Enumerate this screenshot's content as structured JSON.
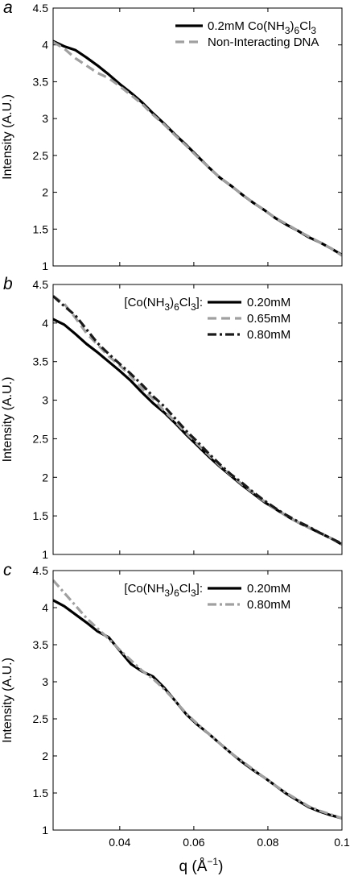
{
  "x_axis": {
    "label_main": "q (",
    "label_unit": "Å",
    "label_exp": "−1",
    "label_close": ")"
  },
  "chart_data": [
    {
      "type": "line",
      "panel_letter": "a",
      "ylabel": "Intensity (A.U.)",
      "xlim": [
        0.022,
        0.1
      ],
      "ylim": [
        1,
        4.5
      ],
      "yticks": [
        "1",
        "1.5",
        "2",
        "2.5",
        "3",
        "3.5",
        "4",
        "4.5"
      ],
      "xticks": [],
      "grid": false,
      "legend_position": "top-right",
      "legend_header": {},
      "series": [
        {
          "name_parts": [
            "0.2mM Co(NH",
            "3",
            ")",
            "6",
            "Cl",
            "3"
          ],
          "color": "#000000",
          "dash": "solid",
          "width": 3.2,
          "points": [
            [
              0.022,
              4.05
            ],
            [
              0.025,
              3.98
            ],
            [
              0.028,
              3.93
            ],
            [
              0.031,
              3.83
            ],
            [
              0.034,
              3.72
            ],
            [
              0.037,
              3.6
            ],
            [
              0.04,
              3.47
            ],
            [
              0.043,
              3.35
            ],
            [
              0.046,
              3.22
            ],
            [
              0.049,
              3.07
            ],
            [
              0.052,
              2.93
            ],
            [
              0.055,
              2.78
            ],
            [
              0.058,
              2.64
            ],
            [
              0.061,
              2.49
            ],
            [
              0.064,
              2.34
            ],
            [
              0.067,
              2.2
            ],
            [
              0.07,
              2.09
            ],
            [
              0.073,
              1.97
            ],
            [
              0.076,
              1.86
            ],
            [
              0.079,
              1.76
            ],
            [
              0.082,
              1.65
            ],
            [
              0.085,
              1.56
            ],
            [
              0.088,
              1.48
            ],
            [
              0.091,
              1.39
            ],
            [
              0.094,
              1.32
            ],
            [
              0.097,
              1.24
            ],
            [
              0.1,
              1.15
            ]
          ]
        },
        {
          "name_parts": [
            "Non-Interacting DNA"
          ],
          "color": "#a0a0a0",
          "dash": "dashed",
          "width": 3.2,
          "points": [
            [
              0.022,
              4.04
            ],
            [
              0.025,
              3.95
            ],
            [
              0.028,
              3.82
            ],
            [
              0.031,
              3.72
            ],
            [
              0.034,
              3.62
            ],
            [
              0.037,
              3.55
            ],
            [
              0.04,
              3.44
            ],
            [
              0.043,
              3.32
            ],
            [
              0.046,
              3.2
            ],
            [
              0.049,
              3.05
            ],
            [
              0.052,
              2.92
            ],
            [
              0.055,
              2.77
            ],
            [
              0.058,
              2.63
            ],
            [
              0.061,
              2.48
            ],
            [
              0.064,
              2.34
            ],
            [
              0.067,
              2.2
            ],
            [
              0.07,
              2.09
            ],
            [
              0.073,
              1.97
            ],
            [
              0.076,
              1.86
            ],
            [
              0.079,
              1.76
            ],
            [
              0.082,
              1.65
            ],
            [
              0.085,
              1.57
            ],
            [
              0.088,
              1.48
            ],
            [
              0.091,
              1.4
            ],
            [
              0.094,
              1.32
            ],
            [
              0.097,
              1.24
            ],
            [
              0.1,
              1.14
            ]
          ]
        }
      ]
    },
    {
      "type": "line",
      "panel_letter": "b",
      "ylabel": "Intensity (A.U.)",
      "xlim": [
        0.022,
        0.1
      ],
      "ylim": [
        1,
        4.5
      ],
      "yticks": [
        "1",
        "1.5",
        "2",
        "2.5",
        "3",
        "3.5",
        "4",
        "4.5"
      ],
      "xticks": [],
      "grid": false,
      "legend_position": "top-right",
      "legend_header": {
        "parts": [
          "[Co(NH",
          "3",
          ")",
          "6",
          "Cl",
          "3",
          "]:"
        ]
      },
      "series": [
        {
          "name_parts": [
            "0.20mM"
          ],
          "color": "#000000",
          "dash": "solid",
          "width": 3.2,
          "points": [
            [
              0.022,
              4.05
            ],
            [
              0.025,
              3.98
            ],
            [
              0.028,
              3.86
            ],
            [
              0.031,
              3.73
            ],
            [
              0.034,
              3.62
            ],
            [
              0.037,
              3.5
            ],
            [
              0.04,
              3.38
            ],
            [
              0.043,
              3.25
            ],
            [
              0.046,
              3.1
            ],
            [
              0.049,
              2.96
            ],
            [
              0.052,
              2.84
            ],
            [
              0.055,
              2.7
            ],
            [
              0.058,
              2.55
            ],
            [
              0.061,
              2.41
            ],
            [
              0.064,
              2.27
            ],
            [
              0.067,
              2.14
            ],
            [
              0.07,
              2.02
            ],
            [
              0.073,
              1.9
            ],
            [
              0.076,
              1.79
            ],
            [
              0.079,
              1.68
            ],
            [
              0.082,
              1.59
            ],
            [
              0.085,
              1.5
            ],
            [
              0.088,
              1.42
            ],
            [
              0.091,
              1.35
            ],
            [
              0.094,
              1.28
            ],
            [
              0.097,
              1.21
            ],
            [
              0.1,
              1.13
            ]
          ]
        },
        {
          "name_parts": [
            "0.65mM"
          ],
          "color": "#a0a0a0",
          "dash": "dashed",
          "width": 3.2,
          "points": [
            [
              0.022,
              4.35
            ],
            [
              0.025,
              4.25
            ],
            [
              0.028,
              4.07
            ],
            [
              0.031,
              3.87
            ],
            [
              0.034,
              3.72
            ],
            [
              0.037,
              3.57
            ],
            [
              0.04,
              3.45
            ],
            [
              0.043,
              3.31
            ],
            [
              0.046,
              3.15
            ],
            [
              0.049,
              3.02
            ],
            [
              0.052,
              2.86
            ],
            [
              0.055,
              2.72
            ],
            [
              0.058,
              2.57
            ],
            [
              0.061,
              2.43
            ],
            [
              0.064,
              2.29
            ],
            [
              0.067,
              2.15
            ],
            [
              0.07,
              2.03
            ],
            [
              0.073,
              1.91
            ],
            [
              0.076,
              1.8
            ],
            [
              0.079,
              1.69
            ],
            [
              0.082,
              1.59
            ],
            [
              0.085,
              1.5
            ],
            [
              0.088,
              1.42
            ],
            [
              0.091,
              1.35
            ],
            [
              0.094,
              1.28
            ],
            [
              0.097,
              1.21
            ],
            [
              0.1,
              1.13
            ]
          ]
        },
        {
          "name_parts": [
            "0.80mM"
          ],
          "color": "#1a1a1a",
          "dash": "dashdot",
          "width": 3.2,
          "points": [
            [
              0.022,
              4.35
            ],
            [
              0.025,
              4.22
            ],
            [
              0.028,
              4.1
            ],
            [
              0.031,
              3.92
            ],
            [
              0.034,
              3.74
            ],
            [
              0.037,
              3.6
            ],
            [
              0.04,
              3.47
            ],
            [
              0.043,
              3.34
            ],
            [
              0.046,
              3.2
            ],
            [
              0.049,
              3.05
            ],
            [
              0.052,
              2.92
            ],
            [
              0.055,
              2.76
            ],
            [
              0.058,
              2.6
            ],
            [
              0.061,
              2.46
            ],
            [
              0.064,
              2.31
            ],
            [
              0.067,
              2.17
            ],
            [
              0.07,
              2.04
            ],
            [
              0.073,
              1.93
            ],
            [
              0.076,
              1.81
            ],
            [
              0.079,
              1.7
            ],
            [
              0.082,
              1.6
            ],
            [
              0.085,
              1.51
            ],
            [
              0.088,
              1.43
            ],
            [
              0.091,
              1.36
            ],
            [
              0.094,
              1.28
            ],
            [
              0.097,
              1.21
            ],
            [
              0.1,
              1.14
            ]
          ]
        }
      ]
    },
    {
      "type": "line",
      "panel_letter": "c",
      "ylabel": "Intensity (A.U.)",
      "xlim": [
        0.022,
        0.1
      ],
      "ylim": [
        1,
        4.5
      ],
      "yticks": [
        "1",
        "1.5",
        "2",
        "2.5",
        "3",
        "3.5",
        "4",
        "4.5"
      ],
      "xticks": [
        "0.04",
        "0.06",
        "0.08",
        "0.1"
      ],
      "grid": false,
      "legend_position": "top-right",
      "legend_header": {
        "parts": [
          "[Co(NH",
          "3",
          ")",
          "6",
          "Cl",
          "3",
          "]:"
        ]
      },
      "series": [
        {
          "name_parts": [
            "0.20mM"
          ],
          "color": "#000000",
          "dash": "solid",
          "width": 3.2,
          "points": [
            [
              0.022,
              4.1
            ],
            [
              0.025,
              4.02
            ],
            [
              0.028,
              3.91
            ],
            [
              0.031,
              3.8
            ],
            [
              0.034,
              3.68
            ],
            [
              0.037,
              3.6
            ],
            [
              0.04,
              3.42
            ],
            [
              0.043,
              3.24
            ],
            [
              0.046,
              3.14
            ],
            [
              0.049,
              3.07
            ],
            [
              0.052,
              2.92
            ],
            [
              0.055,
              2.74
            ],
            [
              0.058,
              2.56
            ],
            [
              0.061,
              2.42
            ],
            [
              0.064,
              2.3
            ],
            [
              0.067,
              2.17
            ],
            [
              0.07,
              2.04
            ],
            [
              0.073,
              1.92
            ],
            [
              0.076,
              1.81
            ],
            [
              0.079,
              1.71
            ],
            [
              0.082,
              1.6
            ],
            [
              0.085,
              1.49
            ],
            [
              0.088,
              1.4
            ],
            [
              0.091,
              1.31
            ],
            [
              0.094,
              1.25
            ],
            [
              0.097,
              1.2
            ],
            [
              0.1,
              1.16
            ]
          ]
        },
        {
          "name_parts": [
            "0.80mM"
          ],
          "color": "#a0a0a0",
          "dash": "dashdot",
          "width": 3.2,
          "points": [
            [
              0.022,
              4.37
            ],
            [
              0.025,
              4.2
            ],
            [
              0.028,
              4.03
            ],
            [
              0.031,
              3.86
            ],
            [
              0.034,
              3.72
            ],
            [
              0.037,
              3.58
            ],
            [
              0.04,
              3.43
            ],
            [
              0.043,
              3.29
            ],
            [
              0.046,
              3.15
            ],
            [
              0.049,
              3.04
            ],
            [
              0.052,
              2.9
            ],
            [
              0.055,
              2.74
            ],
            [
              0.058,
              2.57
            ],
            [
              0.061,
              2.43
            ],
            [
              0.064,
              2.3
            ],
            [
              0.067,
              2.17
            ],
            [
              0.07,
              2.04
            ],
            [
              0.073,
              1.93
            ],
            [
              0.076,
              1.82
            ],
            [
              0.079,
              1.71
            ],
            [
              0.082,
              1.6
            ],
            [
              0.085,
              1.5
            ],
            [
              0.088,
              1.41
            ],
            [
              0.091,
              1.32
            ],
            [
              0.094,
              1.26
            ],
            [
              0.097,
              1.21
            ],
            [
              0.1,
              1.16
            ]
          ]
        }
      ]
    }
  ]
}
